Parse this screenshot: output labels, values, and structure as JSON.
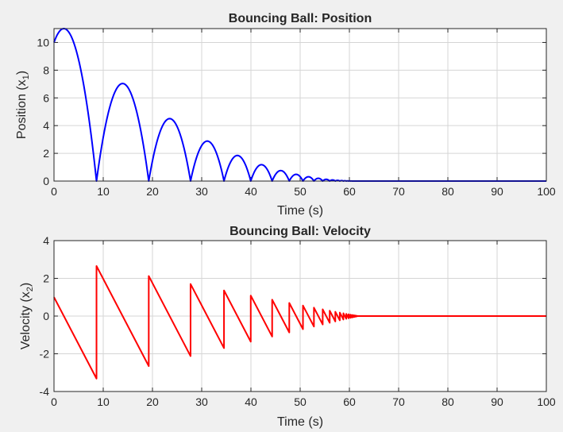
{
  "chart_data": [
    {
      "type": "line",
      "title": "Bouncing Ball: Position",
      "xlabel": "Time (s)",
      "ylabel_main": "Position (x",
      "ylabel_sub": "1",
      "ylabel_close": ")",
      "xlim": [
        0,
        100
      ],
      "ylim": [
        0,
        11
      ],
      "xticks": [
        0,
        10,
        20,
        30,
        40,
        50,
        60,
        70,
        80,
        90,
        100
      ],
      "yticks": [
        0,
        2,
        4,
        6,
        8,
        10
      ],
      "grid": true,
      "color": "#0000ff",
      "series": [
        {
          "name": "x1",
          "model": "bouncing-ball-position",
          "initial_position": 10,
          "initial_velocity": 1,
          "gravity": -0.5,
          "restitution": -0.8,
          "bounce_times": [
            8.7,
            19.2,
            27.9,
            34.7,
            40.2,
            44.6,
            48.1,
            50.9,
            53.2,
            55.0,
            56.4,
            57.6,
            58.5,
            59.3,
            59.9,
            60.4,
            60.8,
            61.1,
            61.3,
            61.5,
            61.7,
            61.8,
            61.9,
            62.0
          ]
        }
      ]
    },
    {
      "type": "line",
      "title": "Bouncing Ball: Velocity",
      "xlabel": "Time (s)",
      "ylabel_main": "Velocity (x",
      "ylabel_sub": "2",
      "ylabel_close": ")",
      "xlim": [
        0,
        100
      ],
      "ylim": [
        -4,
        4
      ],
      "xticks": [
        0,
        10,
        20,
        30,
        40,
        50,
        60,
        70,
        80,
        90,
        100
      ],
      "yticks": [
        -4,
        -2,
        0,
        2,
        4
      ],
      "grid": true,
      "color": "#ff0000",
      "series": [
        {
          "name": "x2",
          "model": "bouncing-ball-velocity",
          "initial_velocity": 1,
          "gravity": -0.5,
          "restitution": -0.8
        }
      ]
    }
  ]
}
